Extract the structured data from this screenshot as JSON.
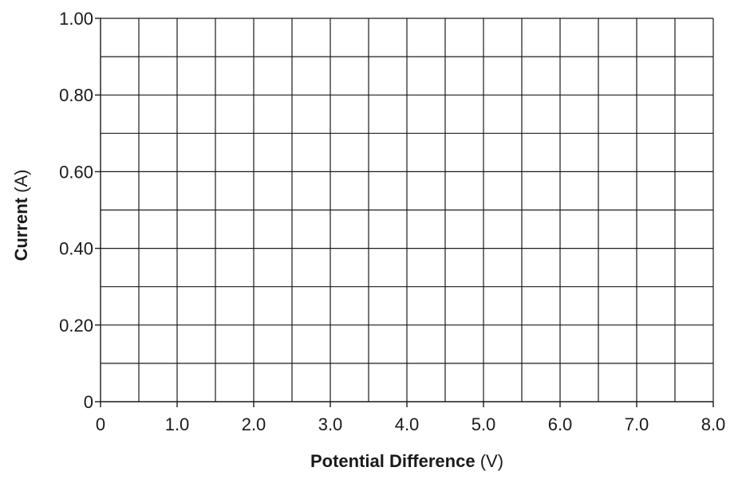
{
  "chart_data": {
    "type": "scatter",
    "title": "",
    "xlabel": {
      "name": "Potential Difference",
      "unit": "(V)"
    },
    "ylabel": {
      "name": "Current",
      "unit": "(A)"
    },
    "xlim": [
      0,
      8.0
    ],
    "ylim": [
      0,
      1.0
    ],
    "x_major_ticks": [
      0,
      1.0,
      2.0,
      3.0,
      4.0,
      5.0,
      6.0,
      7.0,
      8.0
    ],
    "x_tick_labels": [
      "0",
      "1.0",
      "2.0",
      "3.0",
      "4.0",
      "5.0",
      "6.0",
      "7.0",
      "8.0"
    ],
    "x_grid_step": 0.5,
    "y_major_ticks": [
      0,
      0.2,
      0.4,
      0.6,
      0.8,
      1.0
    ],
    "y_tick_labels": [
      "0",
      "0.20",
      "0.40",
      "0.60",
      "0.80",
      "1.00"
    ],
    "y_grid_step": 0.1,
    "grid": true,
    "series": []
  }
}
